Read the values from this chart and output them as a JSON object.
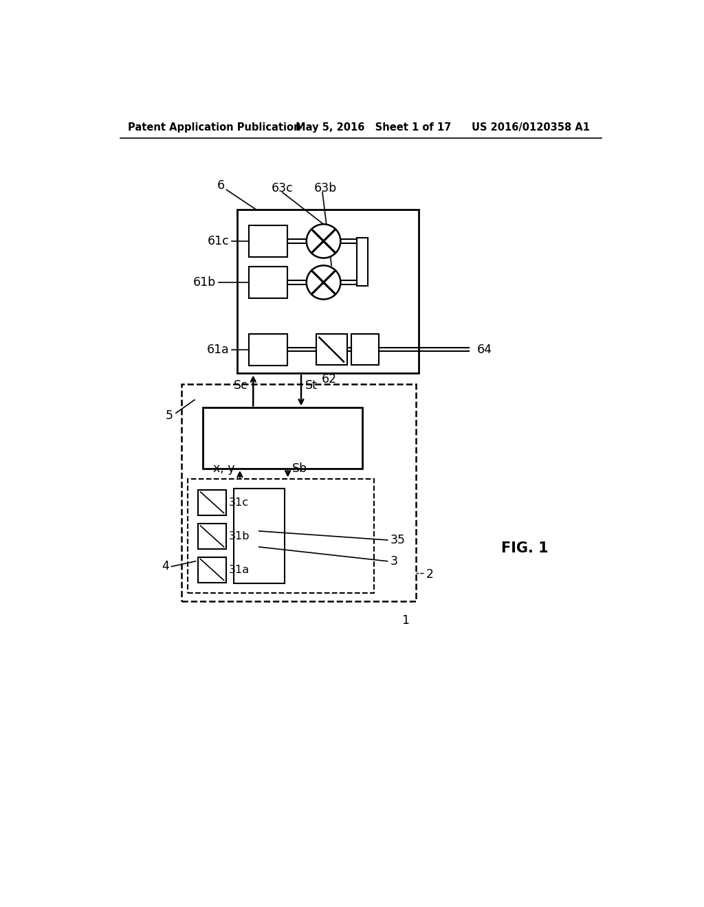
{
  "background_color": "#ffffff",
  "header_left": "Patent Application Publication",
  "header_center": "May 5, 2016   Sheet 1 of 17",
  "header_right": "US 2016/0120358 A1",
  "header_fontsize": 10.5,
  "fig_label": "FIG. 1",
  "fig_label_fontsize": 15
}
